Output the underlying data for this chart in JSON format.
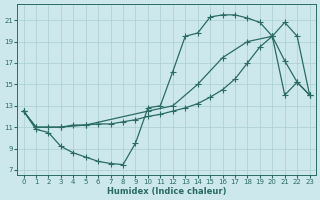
{
  "xlabel": "Humidex (Indice chaleur)",
  "bg_color": "#cde8ec",
  "grid_color": "#aacdd2",
  "line_color": "#2a6b65",
  "xlim": [
    -0.5,
    23.5
  ],
  "ylim": [
    6.5,
    22.5
  ],
  "xticks": [
    0,
    1,
    2,
    3,
    4,
    5,
    6,
    7,
    8,
    9,
    10,
    11,
    12,
    13,
    14,
    15,
    16,
    17,
    18,
    19,
    20,
    21,
    22,
    23
  ],
  "yticks": [
    7,
    9,
    11,
    13,
    15,
    17,
    19,
    21
  ],
  "curve1_x": [
    0,
    1,
    2,
    3,
    4,
    5,
    6,
    7,
    8,
    9,
    10,
    11,
    12,
    13,
    14,
    15,
    16,
    17,
    18,
    19,
    20,
    21,
    22,
    23
  ],
  "curve1_y": [
    12.5,
    10.8,
    10.5,
    9.2,
    8.6,
    8.2,
    7.8,
    7.6,
    7.5,
    9.5,
    12.8,
    13.0,
    16.2,
    19.5,
    19.8,
    21.3,
    21.5,
    21.5,
    21.2,
    20.8,
    19.5,
    17.2,
    15.2,
    14.0
  ],
  "curve2_x": [
    0,
    1,
    2,
    3,
    4,
    5,
    6,
    7,
    8,
    9,
    10,
    11,
    12,
    13,
    14,
    15,
    16,
    17,
    18,
    19,
    20,
    21,
    22,
    23
  ],
  "curve2_y": [
    12.5,
    11.0,
    11.0,
    11.0,
    11.2,
    11.2,
    11.3,
    11.3,
    11.5,
    11.7,
    12.0,
    12.2,
    12.5,
    12.8,
    13.2,
    13.8,
    14.5,
    15.5,
    17.0,
    18.5,
    19.5,
    20.8,
    19.5,
    14.0
  ],
  "curve3_x": [
    0,
    1,
    3,
    5,
    10,
    12,
    14,
    16,
    18,
    20,
    21,
    22,
    23
  ],
  "curve3_y": [
    12.5,
    11.0,
    11.0,
    11.2,
    12.5,
    13.0,
    15.0,
    17.5,
    19.0,
    19.5,
    14.0,
    15.2,
    14.0
  ]
}
